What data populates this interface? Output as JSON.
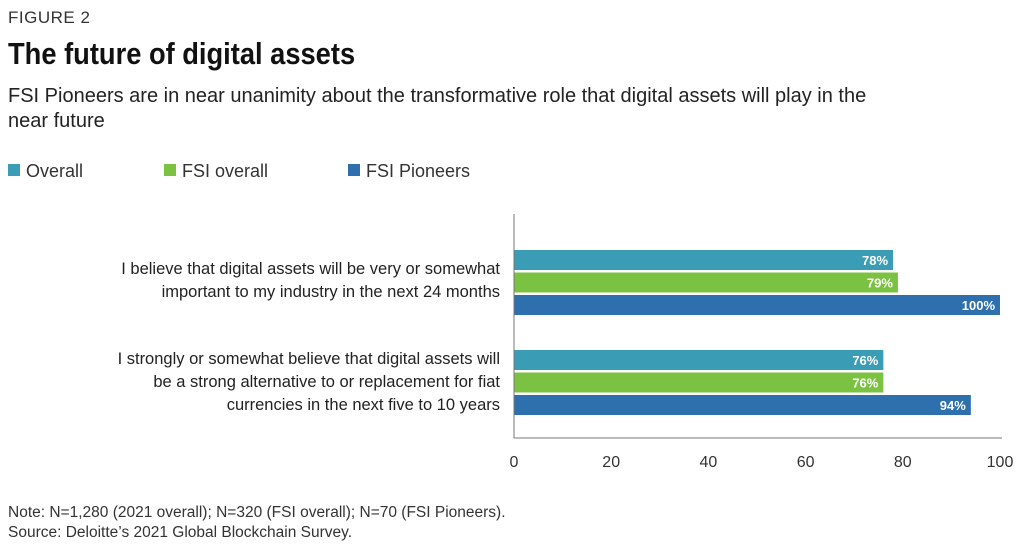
{
  "figure_label": "FIGURE 2",
  "title": "The future of digital assets",
  "subtitle": "FSI Pioneers are in near unanimity about the transformative role that digital assets will play in the near future",
  "chart_data": {
    "type": "bar",
    "orientation": "horizontal",
    "categories": [
      "I believe that digital assets will be very or somewhat important to my industry in the next 24 months",
      "I strongly or somewhat believe that digital assets will be a strong alternative to or replacement for fiat currencies in the next five to 10 years"
    ],
    "category_lines": [
      [
        "I believe that digital assets will be very or somewhat",
        "important to my industry in the next 24 months"
      ],
      [
        "I strongly or somewhat believe that digital assets will",
        "be a strong alternative to or replacement for fiat",
        "currencies in the next five to 10 years"
      ]
    ],
    "series": [
      {
        "name": "Overall",
        "color": "#3a9db5",
        "values": [
          78,
          76
        ],
        "labels": [
          "78%",
          "76%"
        ]
      },
      {
        "name": "FSI overall",
        "color": "#7cc242",
        "values": [
          79,
          76
        ],
        "labels": [
          "79%",
          "76%"
        ]
      },
      {
        "name": "FSI Pioneers",
        "color": "#2e6fad",
        "values": [
          100,
          94
        ],
        "labels": [
          "100%",
          "94%"
        ]
      }
    ],
    "xlim": [
      0,
      100
    ],
    "xticks": [
      0,
      20,
      40,
      60,
      80,
      100
    ],
    "xtick_labels": [
      "0",
      "20",
      "40",
      "60",
      "80",
      "100"
    ],
    "grid": false,
    "legend_position": "top-left"
  },
  "note": "Note:  N=1,280 (2021 overall); N=320 (FSI overall); N=70 (FSI Pioneers).",
  "source": "Source: Deloitte’s 2021 Global Blockchain Survey."
}
